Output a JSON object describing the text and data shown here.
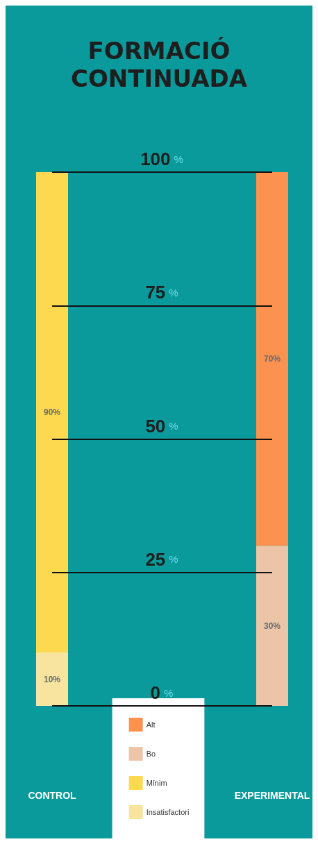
{
  "chart_data": {
    "type": "bar",
    "title": "FORMACIÓ\nCONTINUADA",
    "categories": [
      "CONTROL",
      "EXPERIMENTAL"
    ],
    "stacked": true,
    "series": [
      {
        "name": "Insatisfactori",
        "color": "#f8e39f",
        "values": [
          10,
          null
        ],
        "value_labels": [
          "10%",
          null
        ]
      },
      {
        "name": "Mínim",
        "color": "#fcd94f",
        "values": [
          90,
          null
        ],
        "value_labels": [
          "90%",
          null
        ]
      },
      {
        "name": "Bo",
        "color": "#ecc5a8",
        "values": [
          null,
          30
        ],
        "value_labels": [
          null,
          "30%"
        ]
      },
      {
        "name": "Alt",
        "color": "#fb9250",
        "values": [
          null,
          70
        ],
        "value_labels": [
          null,
          "70%"
        ]
      }
    ],
    "ylim": [
      0,
      100
    ],
    "yticks": [
      {
        "value": 0,
        "label": "0%"
      },
      {
        "value": 25,
        "label": "25%"
      },
      {
        "value": 50,
        "label": "50%"
      },
      {
        "value": 75,
        "label": "75%"
      },
      {
        "value": 100,
        "label": "100%"
      }
    ],
    "ref_lines": [
      {
        "axis": "y",
        "value": 0,
        "color": "#111111"
      },
      {
        "axis": "y",
        "value": 25,
        "color": "#111111"
      },
      {
        "axis": "y",
        "value": 50,
        "color": "#111111"
      },
      {
        "axis": "y",
        "value": 75,
        "color": "#111111"
      },
      {
        "axis": "y",
        "value": 100,
        "color": "#111111"
      }
    ],
    "legend": "bottom"
  }
}
